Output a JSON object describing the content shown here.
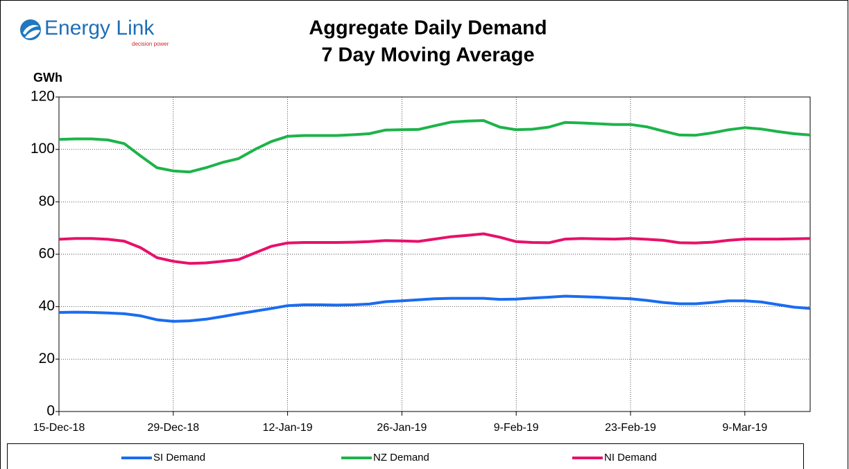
{
  "logo": {
    "name": "Energy Link",
    "tagline": "decision power"
  },
  "chart_data": {
    "type": "line",
    "title": "Aggregate Daily Demand",
    "subtitle": "7 Day Moving Average",
    "y_label": "GWh",
    "x": [
      "2018-12-15",
      "2018-12-17",
      "2018-12-19",
      "2018-12-21",
      "2018-12-23",
      "2018-12-25",
      "2018-12-27",
      "2018-12-29",
      "2018-12-31",
      "2019-01-02",
      "2019-01-04",
      "2019-01-06",
      "2019-01-08",
      "2019-01-10",
      "2019-01-12",
      "2019-01-14",
      "2019-01-16",
      "2019-01-18",
      "2019-01-20",
      "2019-01-22",
      "2019-01-24",
      "2019-01-26",
      "2019-01-28",
      "2019-01-30",
      "2019-02-01",
      "2019-02-03",
      "2019-02-05",
      "2019-02-07",
      "2019-02-09",
      "2019-02-11",
      "2019-02-13",
      "2019-02-15",
      "2019-02-17",
      "2019-02-19",
      "2019-02-21",
      "2019-02-23",
      "2019-02-25",
      "2019-02-27",
      "2019-03-01",
      "2019-03-03",
      "2019-03-05",
      "2019-03-07",
      "2019-03-09",
      "2019-03-11",
      "2019-03-13",
      "2019-03-15",
      "2019-03-17"
    ],
    "series": [
      {
        "name": "SI Demand",
        "color": "#1a6cf0",
        "values": [
          37.8,
          37.9,
          37.8,
          37.6,
          37.3,
          36.5,
          35.0,
          34.4,
          34.6,
          35.2,
          36.2,
          37.3,
          38.3,
          39.3,
          40.4,
          40.7,
          40.7,
          40.6,
          40.7,
          41.0,
          41.9,
          42.2,
          42.6,
          43.0,
          43.2,
          43.2,
          43.2,
          42.8,
          42.9,
          43.3,
          43.6,
          44.0,
          43.8,
          43.6,
          43.3,
          43.0,
          42.4,
          41.6,
          41.1,
          41.1,
          41.6,
          42.2,
          42.2,
          41.8,
          40.8,
          39.8,
          39.3
        ]
      },
      {
        "name": "NZ Demand",
        "color": "#1db34a",
        "values": [
          103.8,
          104.0,
          104.0,
          103.6,
          102.2,
          97.5,
          93.0,
          91.8,
          91.4,
          93.0,
          95.0,
          96.5,
          100.0,
          103.0,
          105.0,
          105.3,
          105.3,
          105.3,
          105.6,
          106.0,
          107.4,
          107.5,
          107.6,
          109.0,
          110.4,
          110.8,
          111.0,
          108.5,
          107.5,
          107.7,
          108.5,
          110.3,
          110.1,
          109.8,
          109.5,
          109.5,
          108.6,
          107.0,
          105.5,
          105.4,
          106.3,
          107.5,
          108.3,
          107.8,
          106.8,
          106.0,
          105.5
        ]
      },
      {
        "name": "NI Demand",
        "color": "#e8106a",
        "values": [
          65.7,
          66.0,
          66.0,
          65.7,
          65.0,
          62.5,
          58.7,
          57.3,
          56.5,
          56.7,
          57.3,
          58.0,
          60.5,
          63.0,
          64.3,
          64.5,
          64.5,
          64.5,
          64.6,
          64.8,
          65.2,
          65.1,
          64.9,
          65.8,
          66.7,
          67.2,
          67.8,
          66.5,
          64.8,
          64.5,
          64.4,
          65.8,
          66.0,
          65.9,
          65.8,
          66.0,
          65.7,
          65.3,
          64.4,
          64.3,
          64.6,
          65.3,
          65.8,
          65.8,
          65.8,
          65.9,
          66.0
        ]
      }
    ],
    "xlim": [
      "2018-12-15",
      "2019-03-17"
    ],
    "xticks": [
      {
        "value": "2018-12-15",
        "label": "15-Dec-18"
      },
      {
        "value": "2018-12-29",
        "label": "29-Dec-18"
      },
      {
        "value": "2019-01-12",
        "label": "12-Jan-19"
      },
      {
        "value": "2019-01-26",
        "label": "26-Jan-19"
      },
      {
        "value": "2019-02-09",
        "label": "9-Feb-19"
      },
      {
        "value": "2019-02-23",
        "label": "23-Feb-19"
      },
      {
        "value": "2019-03-09",
        "label": "9-Mar-19"
      }
    ],
    "ylim": [
      0,
      120
    ],
    "yticks": [
      0,
      20,
      40,
      60,
      80,
      100,
      120
    ],
    "grid": true,
    "legend": "bottom"
  }
}
